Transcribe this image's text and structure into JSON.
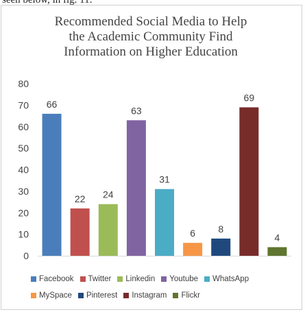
{
  "doc_fragment": "seen below, in fig. 11:",
  "chart_data": {
    "type": "bar",
    "title_lines": [
      "Recommended Social Media to Help",
      "the Academic Community Find",
      "Information on Higher Education"
    ],
    "categories": [
      "Facebook",
      "Twitter",
      "Linkedin",
      "Youtube",
      "WhatsApp",
      "MySpace",
      "Pinterest",
      "Instagram",
      "Flickr"
    ],
    "values": [
      66,
      22,
      24,
      63,
      31,
      6,
      8,
      69,
      4
    ],
    "colors": [
      "#4a7ebb",
      "#c0504d",
      "#9bbb59",
      "#8064a2",
      "#4bacc6",
      "#f79646",
      "#1f497d",
      "#772c2a",
      "#5f7530"
    ],
    "ylim": [
      0,
      80
    ],
    "yticks": [
      0,
      10,
      20,
      30,
      40,
      50,
      60,
      70,
      80
    ],
    "data_labels": true,
    "grid": false,
    "legend_position": "bottom",
    "xlabel": "",
    "ylabel": ""
  }
}
